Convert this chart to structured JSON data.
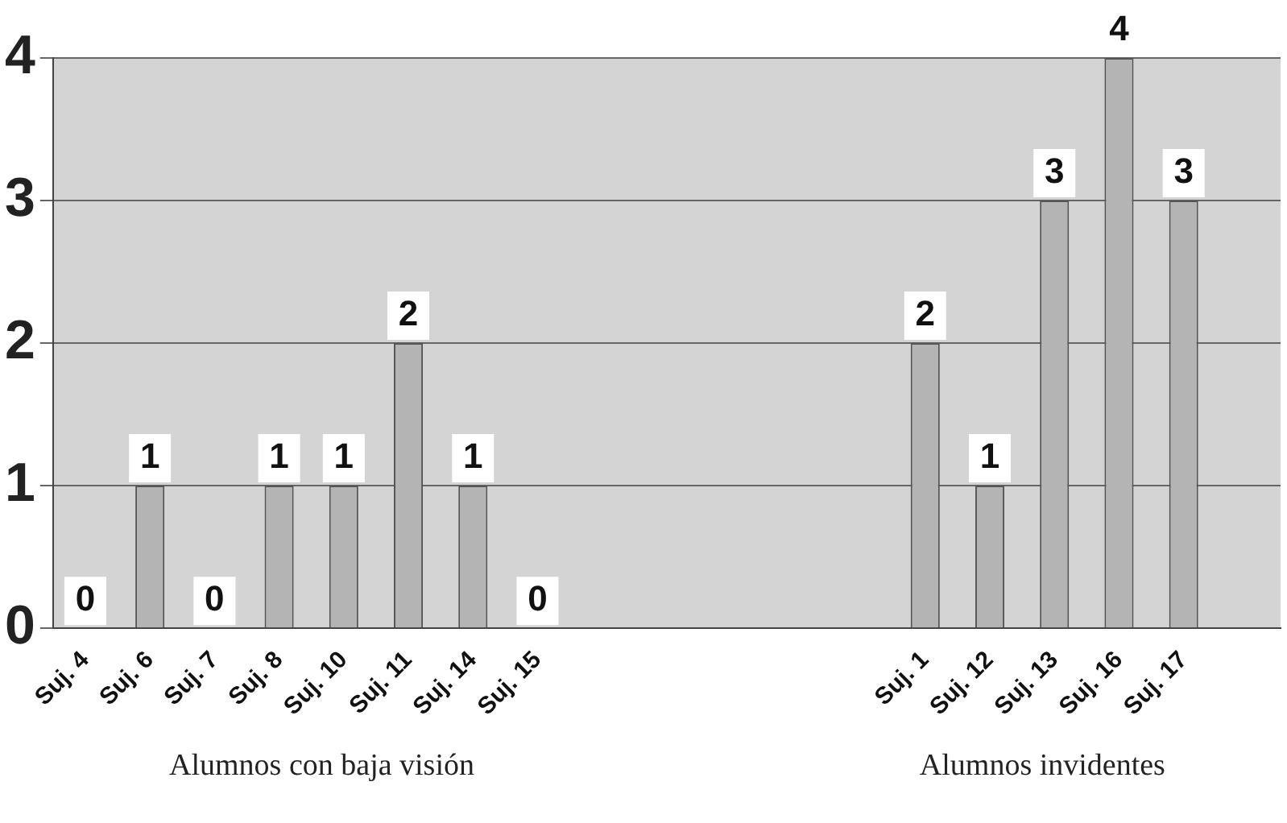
{
  "chart_data": {
    "type": "bar",
    "categories": [
      "Suj. 4",
      "Suj. 6",
      "Suj. 7",
      "Suj. 8",
      "Suj. 10",
      "Suj. 11",
      "Suj. 14",
      "Suj. 15",
      null,
      null,
      null,
      null,
      null,
      "Suj. 1",
      "Suj. 12",
      "Suj. 13",
      "Suj. 16",
      "Suj. 17",
      null
    ],
    "values": [
      0,
      1,
      0,
      1,
      1,
      2,
      1,
      0,
      null,
      null,
      null,
      null,
      null,
      2,
      1,
      3,
      4,
      3,
      null
    ],
    "color": "#b4b4b4",
    "ylim": [
      0,
      4
    ],
    "yticks": [
      0,
      1,
      2,
      3,
      4
    ],
    "grid": "y",
    "data_labels": true,
    "annotations": [
      "Alumnos con baja visión",
      "Alumnos invidentes"
    ]
  }
}
